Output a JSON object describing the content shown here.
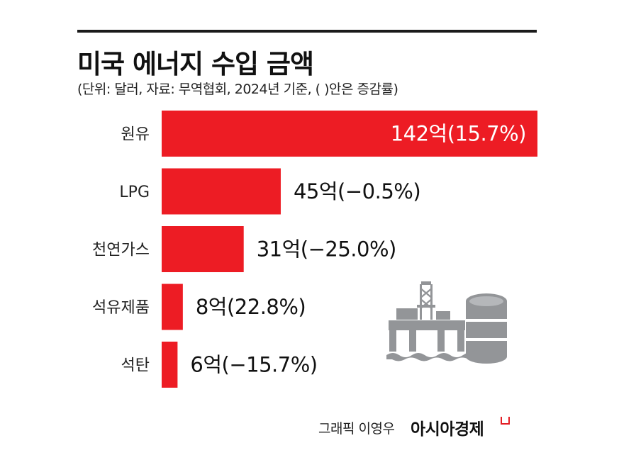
{
  "title": "미국 에너지 수입 금액",
  "subtitle": "(단위: 달러, 자료: 무역협회, 2024년 기준, (  )안은 증감률)",
  "credit": "그래픽 이영우",
  "brand": "아시아경제",
  "colors": {
    "bar": "#ED1C24",
    "rule": "#1a1a1a",
    "icon": "#939598"
  },
  "icons": [
    "oil-rig-icon",
    "oil-barrel-icon"
  ],
  "chart_data": {
    "type": "bar",
    "orientation": "horizontal",
    "categories": [
      "원유",
      "LPG",
      "천연가스",
      "석유제품",
      "석탄"
    ],
    "values": [
      142,
      45,
      31,
      8,
      6
    ],
    "value_labels": [
      "142억(15.7%)",
      "45억(−0.5%)",
      "31억(−25.0%)",
      "8억(22.8%)",
      "6억(−15.7%)"
    ],
    "change_pct": [
      15.7,
      -0.5,
      -25.0,
      22.8,
      -15.7
    ],
    "unit": "억 달러",
    "xlim": [
      0,
      142
    ],
    "grid": false,
    "legend": false
  }
}
